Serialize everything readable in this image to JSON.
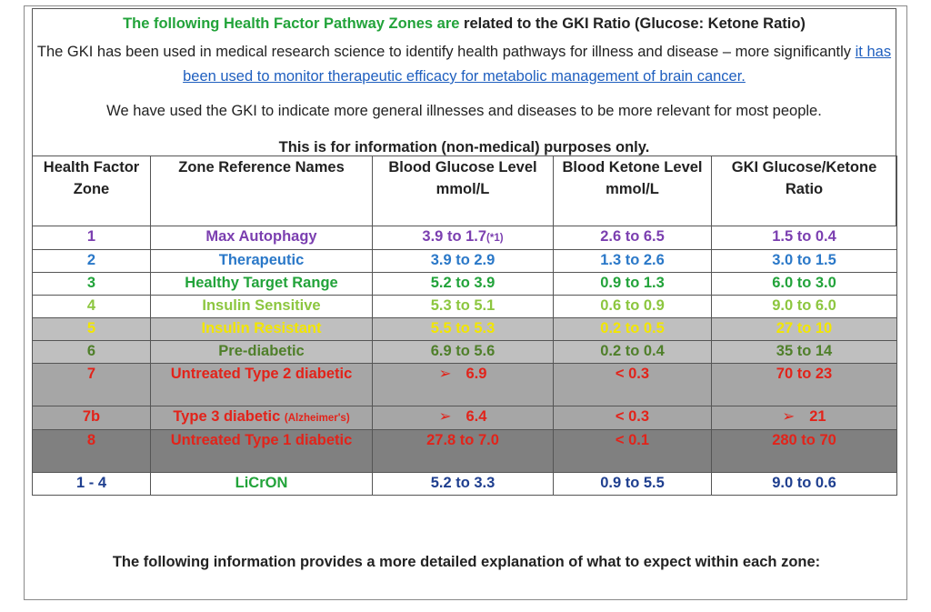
{
  "header": {
    "title_green": "The following Health Factor Pathway Zones are",
    "title_rest": " related to the GKI Ratio (Glucose: Ketone Ratio)",
    "intro_start": "The GKI has been used in medical research science to identify health pathways for illness and disease – more significantly ",
    "intro_link": "it has been used to monitor therapeutic efficacy for metabolic management of brain cancer.",
    "general": "We have used the GKI to indicate more general illnesses and diseases to be more relevant for most people.",
    "purpose": "This is for information (non-medical) purposes only."
  },
  "table": {
    "headers": [
      "Health Factor Zone",
      "Zone Reference Names",
      "Blood Glucose Level mmol/L",
      "Blood Ketone Level mmol/L",
      "GKI Glucose/Ketone Ratio"
    ],
    "rows": [
      {
        "zone": "1",
        "name": "Max Autophagy",
        "glucose": "3.9 to 1.7",
        "glucose_note": "(*1)",
        "ketone": "2.6 to 6.5",
        "gki": "1.5 to 0.4",
        "bg": "#ffffff",
        "zone_color": "#7b3fb0",
        "text_color": "#7b3fb0"
      },
      {
        "zone": "2",
        "name": "Therapeutic",
        "glucose": "3.9 to 2.9",
        "ketone": "1.3 to 2.6",
        "gki": "3.0 to 1.5",
        "bg": "#ffffff",
        "zone_color": "#2a78c8",
        "text_color": "#2a78c8"
      },
      {
        "zone": "3",
        "name": "Healthy Target Range",
        "glucose": "5.2 to 3.9",
        "ketone": "0.9 to 1.3",
        "gki": "6.0 to 3.0",
        "bg": "#ffffff",
        "zone_color": "#22a33a",
        "text_color": "#22a33a"
      },
      {
        "zone": "4",
        "name": "Insulin Sensitive",
        "glucose": "5.3 to 5.1",
        "ketone": "0.6 to 0.9",
        "gki": "9.0 to 6.0",
        "bg": "#ffffff",
        "zone_color": "#8cc63f",
        "text_color": "#8cc63f"
      },
      {
        "zone": "5",
        "name": "Insulin Resistant",
        "glucose": "5.5 to 5.3",
        "ketone": "0.2 to 0.5",
        "gki": "27 to 10",
        "bg": "#bfbfbf",
        "zone_color": "#f2e600",
        "text_color": "#f2e600"
      },
      {
        "zone": "6",
        "name": "Pre-diabetic",
        "glucose": "6.9 to 5.6",
        "ketone": "0.2 to 0.4",
        "gki": "35 to 14",
        "bg": "#bfbfbf",
        "zone_color": "#4f7f2a",
        "text_color": "#4f7f2a"
      },
      {
        "zone": "7",
        "name": "Untreated Type 2 diabetic",
        "glucose_arrow": "➢",
        "glucose": "6.9",
        "ketone": "< 0.3",
        "gki": "70 to 23",
        "bg": "#a6a6a6",
        "zone_color": "#e2231a",
        "text_color": "#e2231a",
        "tall": true
      },
      {
        "zone": "7b",
        "name": "Type 3 diabetic",
        "name_note": "(Alzheimer's)",
        "glucose_arrow": "➢",
        "glucose": "6.4",
        "ketone": "< 0.3",
        "gki_arrow": "➢",
        "gki": "21",
        "bg": "#a6a6a6",
        "zone_color": "#e2231a",
        "text_color": "#e2231a"
      },
      {
        "zone": "8",
        "name": "Untreated Type 1 diabetic",
        "glucose": "27.8 to 7.0",
        "ketone": "< 0.1",
        "gki": "280 to 70",
        "bg": "#808080",
        "zone_color": "#e2231a",
        "text_color": "#e2231a",
        "tall": true
      },
      {
        "zone": "1 - 4",
        "name": "LiCrON",
        "glucose": "5.2 to 3.3",
        "ketone": "0.9 to 5.5",
        "gki": "9.0 to 0.6",
        "bg": "#ffffff",
        "zone_color": "#1f3f8f",
        "name_color": "#22a33a",
        "text_color": "#1f3f8f"
      }
    ]
  },
  "footer": {
    "text": "The following information provides a more detailed explanation of what to expect within each zone:"
  }
}
